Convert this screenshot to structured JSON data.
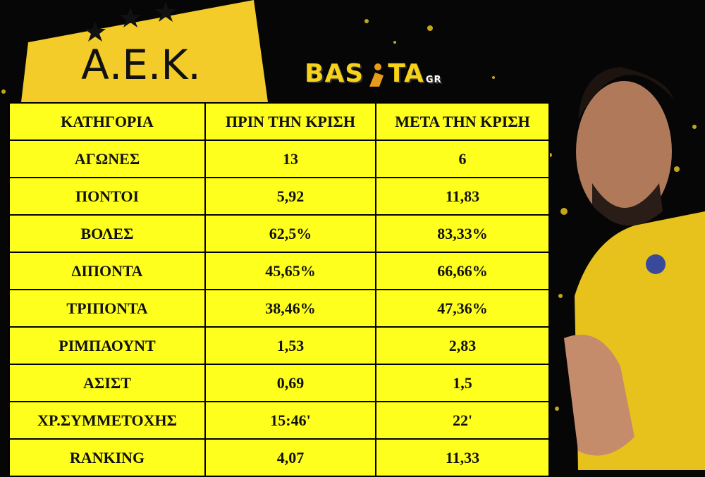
{
  "logo": {
    "text": "Α.Ε.Κ."
  },
  "brand": {
    "left": "BAS",
    "right": "TA",
    "suffix": "GR"
  },
  "table": {
    "header": [
      "ΚΑΤΗΓΟΡΙΑ",
      "ΠΡΙΝ ΤΗΝ ΚΡΙΣΗ",
      "ΜΕΤΑ ΤΗΝ ΚΡΙΣΗ"
    ],
    "rows": [
      [
        "ΑΓΩΝΕΣ",
        "13",
        "6"
      ],
      [
        "ΠΟΝΤΟΙ",
        "5,92",
        "11,83"
      ],
      [
        "ΒΟΛΕΣ",
        "62,5%",
        "83,33%"
      ],
      [
        "ΔΙΠΟΝΤΑ",
        "45,65%",
        "66,66%"
      ],
      [
        "ΤΡΙΠΟΝΤΑ",
        "38,46%",
        "47,36%"
      ],
      [
        "ΡΙΜΠΑΟΥΝΤ",
        "1,53",
        "2,83"
      ],
      [
        "ΑΣΙΣΤ",
        "0,69",
        "1,5"
      ],
      [
        "ΧΡ.ΣΥΜΜΕΤΟΧΗΣ",
        "15:46'",
        "22'"
      ],
      [
        "RANKING",
        "4,07",
        "11,33"
      ]
    ]
  }
}
